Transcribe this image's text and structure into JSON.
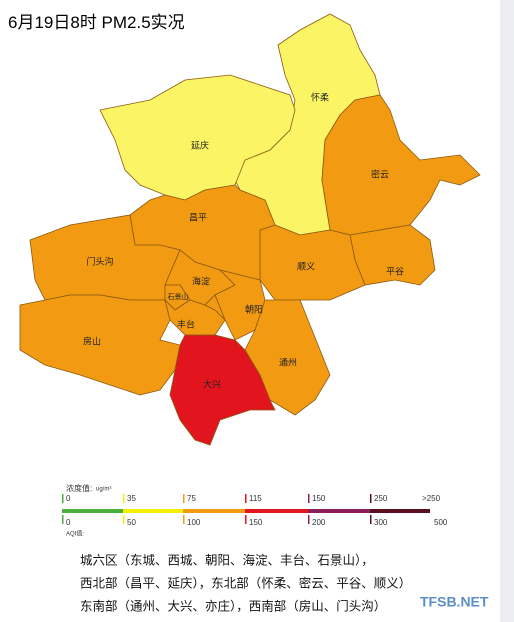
{
  "title": "6月19日8时 PM2.5实况",
  "districts": [
    "怀柔",
    "延庆",
    "密云",
    "昌平",
    "门头沟",
    "海淀",
    "顺义",
    "平谷",
    "石景山",
    "朝阳",
    "丰台",
    "房山",
    "通州",
    "大兴"
  ],
  "legend": {
    "concentration_label": "浓度值:",
    "unit": "ug/m³",
    "concentration": [
      0,
      35,
      75,
      115,
      150,
      250,
      ">250"
    ],
    "aqi_label": "AQI值:",
    "aqi": [
      0,
      50,
      100,
      150,
      200,
      300,
      500
    ]
  },
  "notes": [
    "城六区（东城、西城、朝阳、海淀、丰台、石景山），",
    "西北部（昌平、延庆），东北部（怀柔、密云、平谷、顺义）",
    "东南部（通州、大兴、亦庄），西南部（房山、门头沟）"
  ],
  "watermark": "TFSB.NET"
}
